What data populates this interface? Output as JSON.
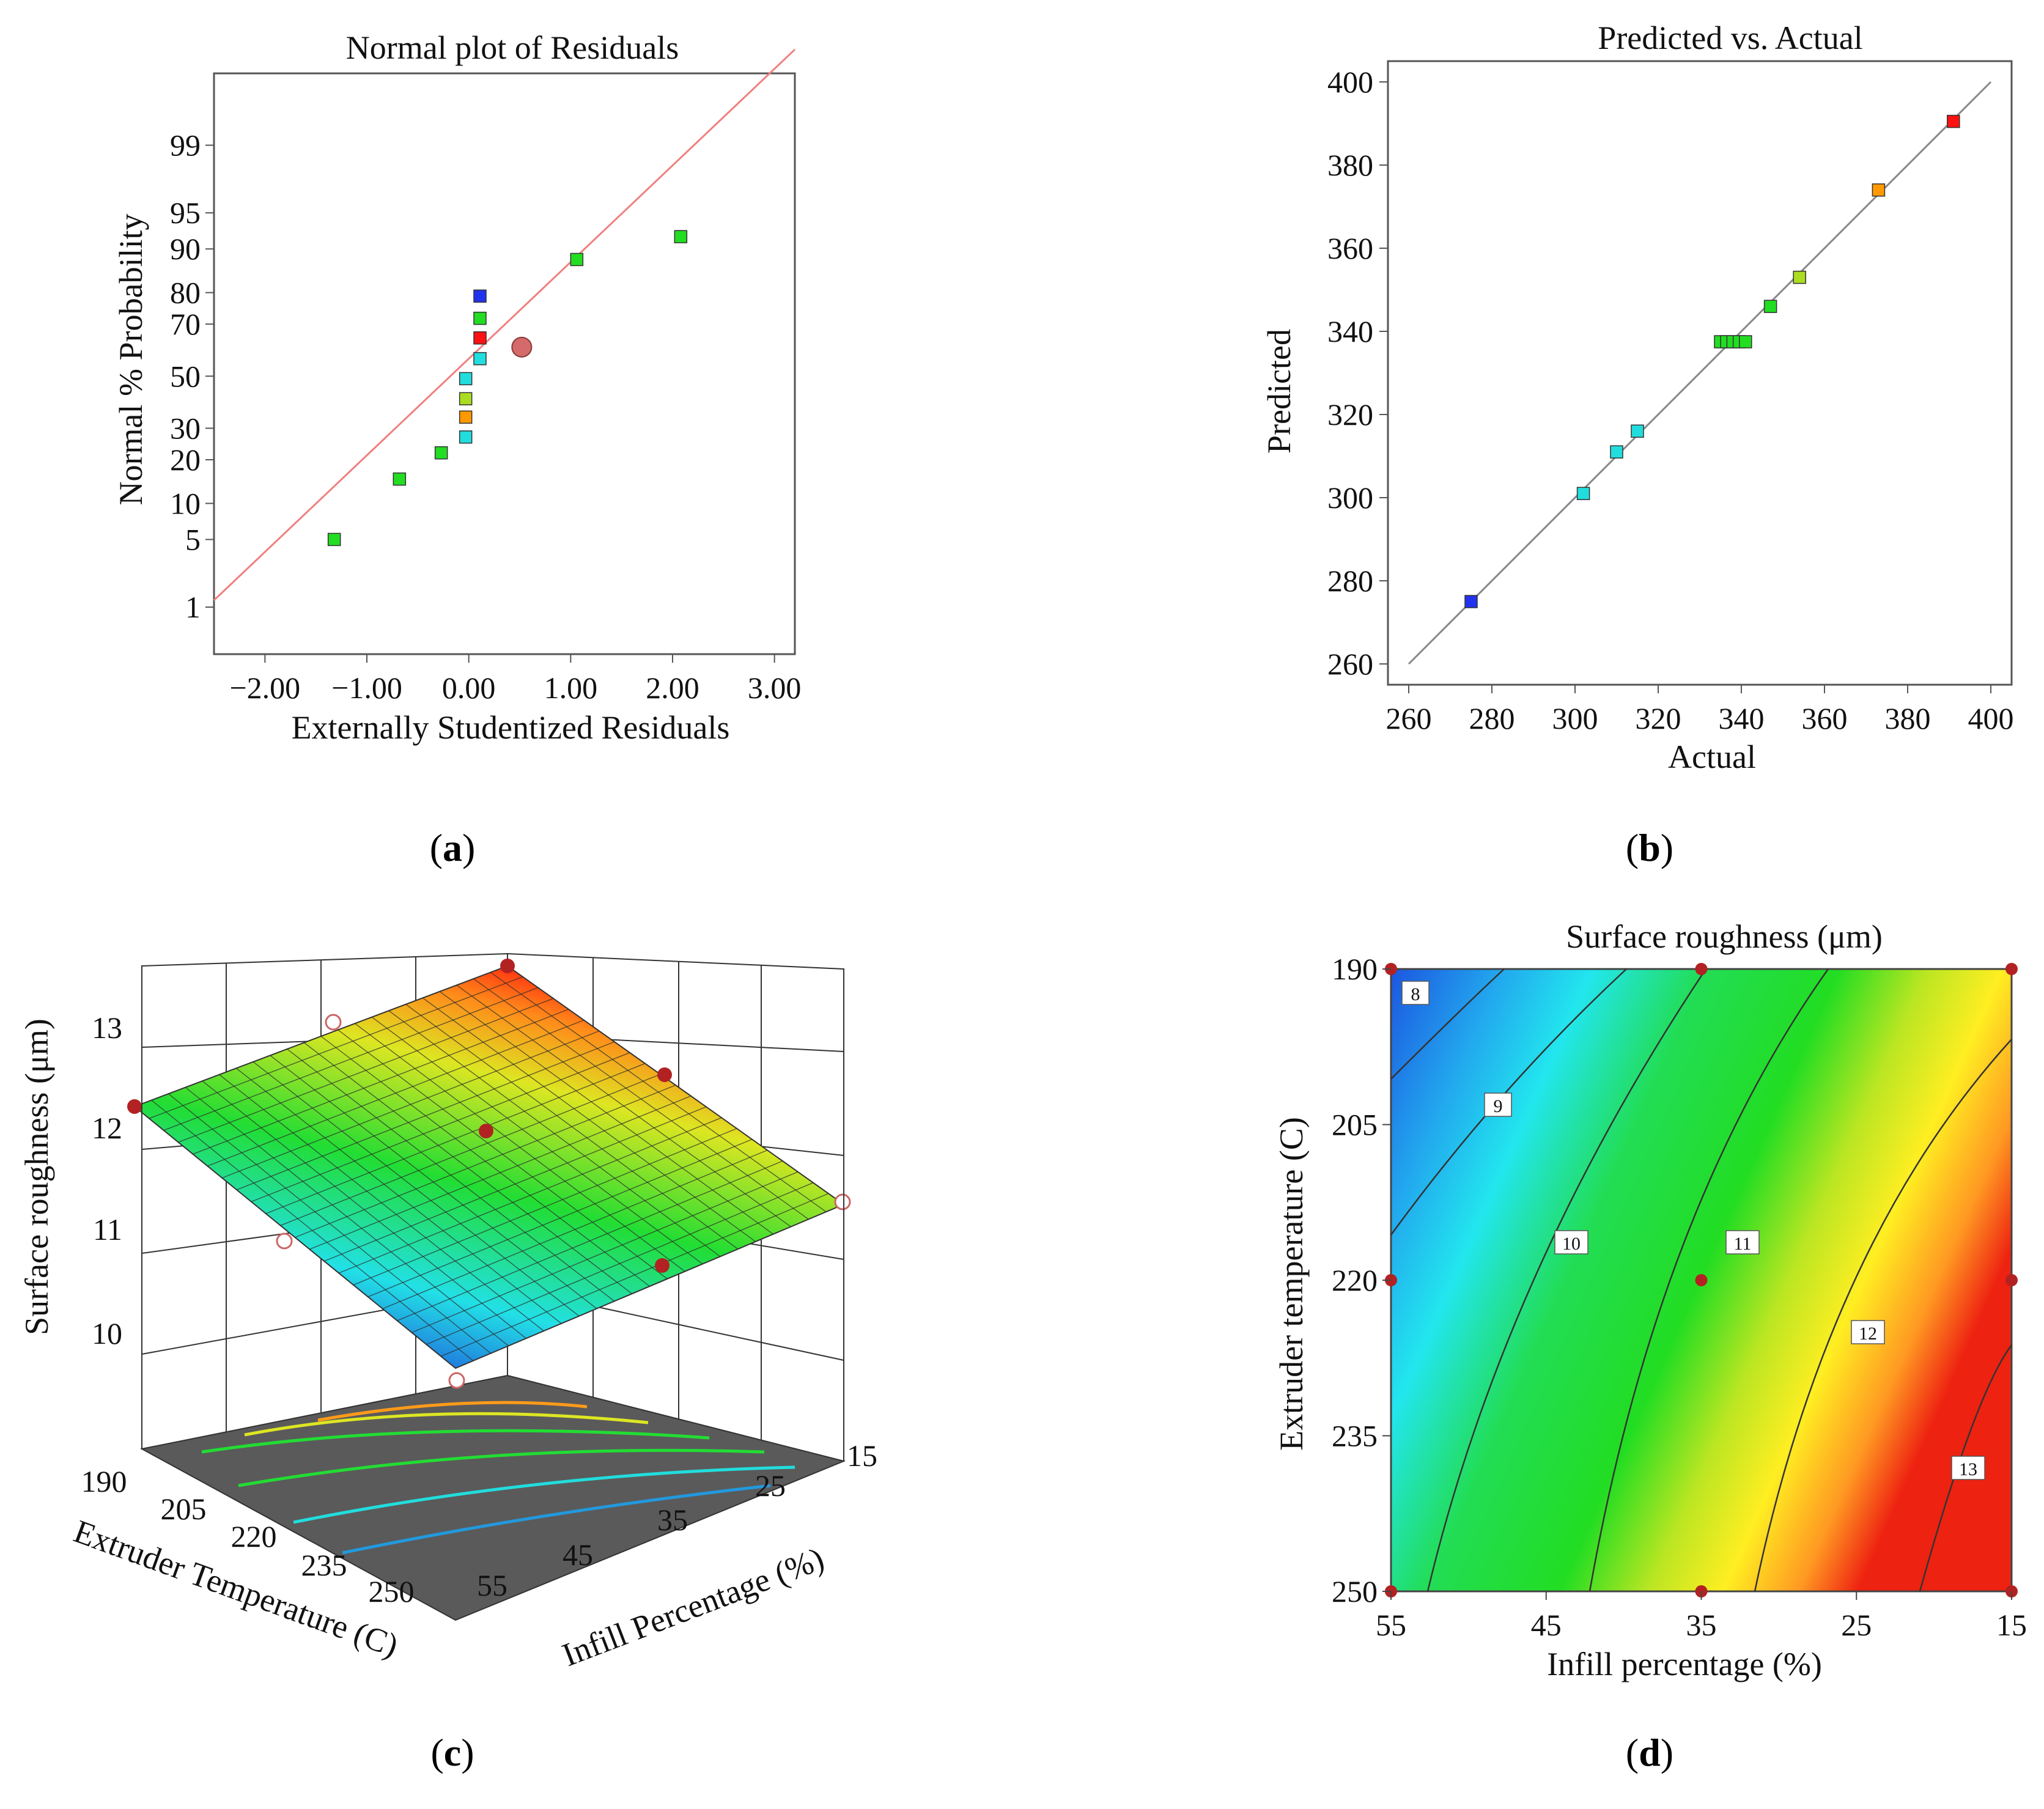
{
  "panels": [
    {
      "label": "a"
    },
    {
      "label": "b"
    },
    {
      "label": "c"
    },
    {
      "label": "d"
    }
  ],
  "chart_data": [
    {
      "panel": "a",
      "type": "scatter",
      "title": "Normal plot of Residuals",
      "xlabel": "Externally Studentized Residuals",
      "ylabel": "Normal % Probability",
      "xlim": [
        -2.5,
        3.2
      ],
      "x_ticks": [
        "-2.00",
        "-1.00",
        "0.00",
        "1.00",
        "2.00",
        "3.00"
      ],
      "y_ticks": [
        "1",
        "5",
        "10",
        "20",
        "30",
        "50",
        "70",
        "80",
        "90",
        "95",
        "99"
      ],
      "grid": false,
      "points": [
        {
          "x": -1.32,
          "y": 5,
          "color": "#22dd22"
        },
        {
          "x": -0.68,
          "y": 15,
          "color": "#22dd22"
        },
        {
          "x": -0.27,
          "y": 22,
          "color": "#22dd22"
        },
        {
          "x": -0.03,
          "y": 27,
          "color": "#22dddd"
        },
        {
          "x": -0.03,
          "y": 34,
          "color": "#ff9900"
        },
        {
          "x": -0.03,
          "y": 41,
          "color": "#aadd22"
        },
        {
          "x": -0.03,
          "y": 49,
          "color": "#22dddd"
        },
        {
          "x": 0.11,
          "y": 57,
          "color": "#22dddd"
        },
        {
          "x": 0.11,
          "y": 65,
          "color": "#ff1111"
        },
        {
          "x": 0.11,
          "y": 72,
          "color": "#22dd22"
        },
        {
          "x": 0.11,
          "y": 79,
          "color": "#2233ee"
        },
        {
          "x": 1.06,
          "y": 88,
          "color": "#22dd22"
        },
        {
          "x": 2.08,
          "y": 92,
          "color": "#22dd22"
        }
      ],
      "highlight": {
        "x": 0.52,
        "y": 61.5,
        "color": "#d46a6a"
      },
      "fit_line": {
        "x": [
          -2.5,
          3.2
        ],
        "y": [
          1.2,
          99.95
        ],
        "color": "#f08080"
      }
    },
    {
      "panel": "b",
      "type": "scatter",
      "title": "Predicted vs. Actual",
      "xlabel": "Actual",
      "ylabel": "Predicted",
      "xlim": [
        255,
        405
      ],
      "ylim": [
        255,
        405
      ],
      "x_ticks": [
        260,
        280,
        300,
        320,
        340,
        360,
        380,
        400
      ],
      "y_ticks": [
        260,
        280,
        300,
        320,
        340,
        360,
        380,
        400
      ],
      "grid": false,
      "points": [
        {
          "x": 275,
          "y": 275,
          "color": "#2233ee"
        },
        {
          "x": 302,
          "y": 301,
          "color": "#22dddd"
        },
        {
          "x": 310,
          "y": 311,
          "color": "#22dddd"
        },
        {
          "x": 315,
          "y": 316,
          "color": "#22dddd"
        },
        {
          "x": 335,
          "y": 337.5,
          "color": "#22dd22"
        },
        {
          "x": 336.5,
          "y": 337.5,
          "color": "#22dd22"
        },
        {
          "x": 338,
          "y": 337.5,
          "color": "#22dd22"
        },
        {
          "x": 339.5,
          "y": 337.5,
          "color": "#22dd22"
        },
        {
          "x": 341,
          "y": 337.5,
          "color": "#22dd22"
        },
        {
          "x": 347,
          "y": 346,
          "color": "#22dd22"
        },
        {
          "x": 354,
          "y": 353,
          "color": "#aadd22"
        },
        {
          "x": 373,
          "y": 374,
          "color": "#ff9900"
        },
        {
          "x": 391,
          "y": 390.5,
          "color": "#ff1111"
        }
      ],
      "fit_line": {
        "x": [
          260,
          400
        ],
        "y": [
          260,
          400
        ],
        "color": "#888888"
      }
    },
    {
      "panel": "c",
      "type": "surface",
      "zlabel": "Surface roughness (μm)",
      "xlabel": "Extruder Temperature (C)",
      "ylabel": "Infill Percentage (%)",
      "z_ticks": [
        10,
        11,
        12,
        13
      ],
      "x_ticks": [
        190,
        205,
        220,
        235,
        250
      ],
      "y_ticks": [
        55,
        45,
        35,
        25,
        15
      ],
      "corners": [
        {
          "temp": 190,
          "infill": 55,
          "z": 12.1
        },
        {
          "temp": 190,
          "infill": 15,
          "z": 13.4
        },
        {
          "temp": 250,
          "infill": 15,
          "z": 11.5
        },
        {
          "temp": 250,
          "infill": 55,
          "z": 9.9
        }
      ]
    },
    {
      "panel": "d",
      "type": "contour",
      "title": "Surface roughness (μm)",
      "xlabel": "Infill percentage (%)",
      "ylabel": "Extruder temperature (C)",
      "x_ticks": [
        55,
        45,
        35,
        25,
        15
      ],
      "y_ticks": [
        190,
        205,
        220,
        235,
        250
      ],
      "contour_levels": [
        "8",
        "9",
        "10",
        "11",
        "12",
        "13"
      ],
      "design_points": [
        {
          "infill": 55,
          "temp": 190
        },
        {
          "infill": 35,
          "temp": 190
        },
        {
          "infill": 15,
          "temp": 190
        },
        {
          "infill": 55,
          "temp": 220
        },
        {
          "infill": 35,
          "temp": 220
        },
        {
          "infill": 15,
          "temp": 220
        },
        {
          "infill": 55,
          "temp": 250
        },
        {
          "infill": 35,
          "temp": 250
        },
        {
          "infill": 15,
          "temp": 250
        }
      ]
    }
  ]
}
